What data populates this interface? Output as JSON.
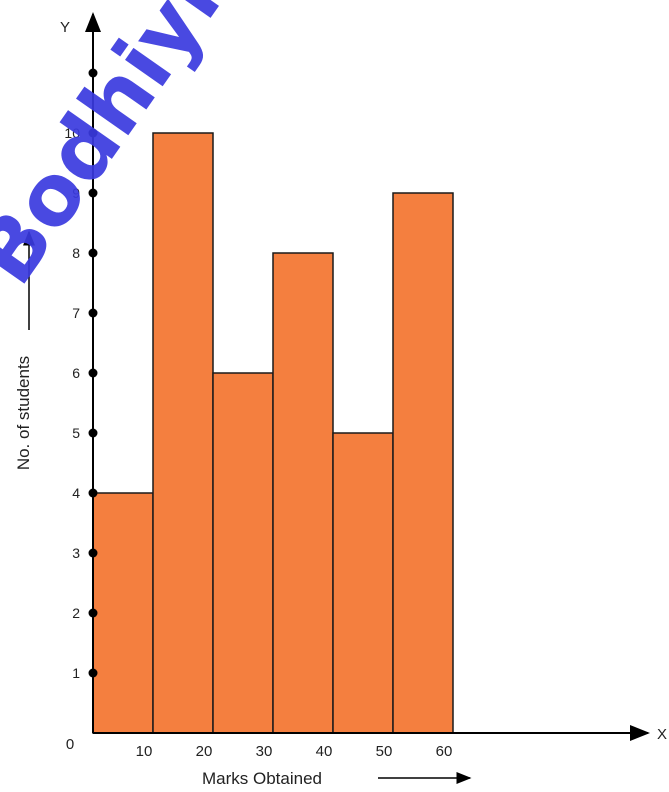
{
  "chart_data": {
    "type": "bar",
    "categories": [
      "0-10",
      "10-20",
      "20-30",
      "30-40",
      "40-50",
      "50-60"
    ],
    "values": [
      4,
      10,
      6,
      8,
      5,
      9
    ],
    "x_ticks": [
      "0",
      "10",
      "20",
      "30",
      "40",
      "50",
      "60"
    ],
    "y_ticks": [
      "1",
      "2",
      "3",
      "4",
      "5",
      "6",
      "7",
      "8",
      "9",
      "10"
    ],
    "x_axis_letter": "X",
    "y_axis_letter": "Y",
    "xlabel": "Marks Obtained",
    "ylabel": "No. of students",
    "xlim": [
      0,
      60
    ],
    "ylim": [
      0,
      11
    ],
    "bar_color": "#f47f3f",
    "grid": false
  },
  "watermark": {
    "text": "Bodhiyl"
  }
}
